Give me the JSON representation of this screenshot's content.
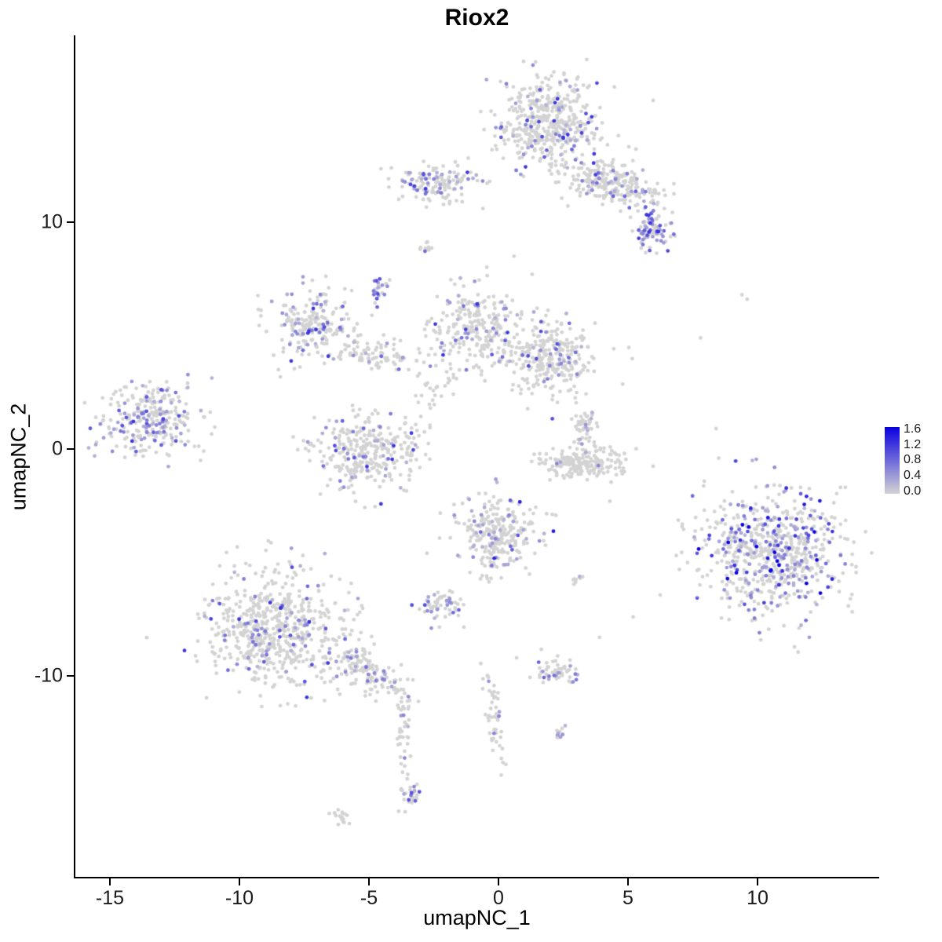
{
  "chart_data": {
    "type": "scatter",
    "title": "Riox2",
    "xlabel": "umapNC_1",
    "ylabel": "umapNC_2",
    "x_ticks": [
      -15,
      -10,
      -5,
      0,
      5,
      10
    ],
    "y_ticks": [
      -10,
      0,
      10
    ],
    "xlim": [
      -16.4,
      14.7
    ],
    "ylim": [
      -18.9,
      18.2
    ],
    "grid": false,
    "seed": 42,
    "colors": {
      "background": "#FFFFFF",
      "axis": "#000000",
      "base_point": "#D3D3D3",
      "high_point": "#0A00E0"
    },
    "point_style": {
      "radius": 2.4
    },
    "legend": {
      "position": "right",
      "labels": [
        "1.6",
        "1.2",
        "0.8",
        "0.4",
        "0.0"
      ],
      "min_value": 0.0,
      "max_value": 1.6,
      "low_color": "#D3D3D3",
      "high_color": "#0A00E0"
    },
    "clusters": [
      {
        "name": "top-main",
        "cx": 1.9,
        "cy": 14.3,
        "sx": 0.95,
        "sy": 1.0,
        "rot": 0,
        "n": 470,
        "frac": 0.14,
        "vmax": 1.2
      },
      {
        "name": "top-band",
        "cx": 4.4,
        "cy": 11.7,
        "sx": 1.05,
        "sy": 0.5,
        "rot": -14,
        "n": 260,
        "frac": 0.16,
        "vmax": 1.2
      },
      {
        "name": "top-right-knob",
        "cx": 5.9,
        "cy": 9.7,
        "sx": 0.4,
        "sy": 0.5,
        "rot": 0,
        "n": 85,
        "frac": 0.45,
        "vmax": 1.2
      },
      {
        "name": "top-left",
        "cx": -2.5,
        "cy": 11.7,
        "sx": 0.78,
        "sy": 0.45,
        "rot": 0,
        "n": 140,
        "frac": 0.22,
        "vmax": 1.2
      },
      {
        "name": "dot-upper-mid",
        "cx": -2.8,
        "cy": 8.9,
        "sx": 0.12,
        "sy": 0.12,
        "rot": 0,
        "n": 10,
        "frac": 0.3,
        "vmax": 0.8
      },
      {
        "name": "small-upper-left",
        "cx": -4.6,
        "cy": 7.0,
        "sx": 0.22,
        "sy": 0.3,
        "rot": 0,
        "n": 22,
        "frac": 0.35,
        "vmax": 1.0
      },
      {
        "name": "left-mid",
        "cx": -7.1,
        "cy": 5.5,
        "sx": 0.78,
        "sy": 0.72,
        "rot": 20,
        "n": 210,
        "frac": 0.2,
        "vmax": 1.2
      },
      {
        "name": "chain-left-center",
        "cx": -4.7,
        "cy": 4.2,
        "sx": 0.85,
        "sy": 0.38,
        "rot": -12,
        "n": 90,
        "frac": 0.1,
        "vmax": 0.8
      },
      {
        "name": "center",
        "cx": -0.9,
        "cy": 5.4,
        "sx": 0.85,
        "sy": 0.92,
        "rot": 0,
        "n": 250,
        "frac": 0.13,
        "vmax": 1.2
      },
      {
        "name": "center-right",
        "cx": 1.9,
        "cy": 4.0,
        "sx": 0.92,
        "sy": 0.82,
        "rot": 0,
        "n": 300,
        "frac": 0.1,
        "vmax": 1.0
      },
      {
        "name": "bridge-below-center",
        "cx": -2.4,
        "cy": 2.6,
        "sx": 0.3,
        "sy": 0.65,
        "rot": -30,
        "n": 28,
        "frac": 0.12,
        "vmax": 0.6
      },
      {
        "name": "mid-low",
        "cx": -5.0,
        "cy": -0.1,
        "sx": 1.05,
        "sy": 0.78,
        "rot": 10,
        "n": 330,
        "frac": 0.13,
        "vmax": 1.2
      },
      {
        "name": "far-left",
        "cx": -13.4,
        "cy": 1.2,
        "sx": 0.88,
        "sy": 0.78,
        "rot": 0,
        "n": 280,
        "frac": 0.38,
        "vmax": 1.2,
        "vscale": 0.35
      },
      {
        "name": "small-right-of-center",
        "cx": 3.3,
        "cy": 1.1,
        "sx": 0.28,
        "sy": 0.45,
        "rot": 0,
        "n": 50,
        "frac": 0.2,
        "vmax": 1.0
      },
      {
        "name": "crescent",
        "cx": 3.3,
        "cy": -0.6,
        "sx": 0.8,
        "sy": 0.33,
        "rot": 0,
        "n": 200,
        "frac": 0.03,
        "vmax": 0.6
      },
      {
        "name": "center-low",
        "cx": 0.0,
        "cy": -3.8,
        "sx": 0.78,
        "sy": 0.85,
        "rot": 0,
        "n": 270,
        "frac": 0.18,
        "vmax": 1.4
      },
      {
        "name": "small-below-center",
        "cx": -2.2,
        "cy": -6.9,
        "sx": 0.45,
        "sy": 0.32,
        "rot": 0,
        "n": 60,
        "frac": 0.25,
        "vmax": 1.0
      },
      {
        "name": "bottom-left",
        "cx": -8.6,
        "cy": -7.9,
        "sx": 1.35,
        "sy": 1.35,
        "rot": 0,
        "n": 640,
        "frac": 0.13,
        "vmax": 1.2
      },
      {
        "name": "bottom-left-tail",
        "cx": -4.9,
        "cy": -9.8,
        "sx": 0.9,
        "sy": 0.42,
        "rot": -38,
        "n": 150,
        "frac": 0.18,
        "vmax": 1.2
      },
      {
        "name": "tail-chain",
        "cx": -3.65,
        "cy": -12.7,
        "sx": 0.13,
        "sy": 1.15,
        "rot": 0,
        "n": 40,
        "frac": 0.05,
        "vmax": 0.6
      },
      {
        "name": "tail-end",
        "cx": -3.45,
        "cy": -15.2,
        "sx": 0.16,
        "sy": 0.42,
        "rot": 0,
        "n": 26,
        "frac": 0.3,
        "vmax": 1.0
      },
      {
        "name": "small-bottom-left-blob",
        "cx": -6.1,
        "cy": -16.2,
        "sx": 0.22,
        "sy": 0.16,
        "rot": 0,
        "n": 18,
        "frac": 0.1,
        "vmax": 0.6
      },
      {
        "name": "small-bottom-mid",
        "cx": 2.4,
        "cy": -9.8,
        "sx": 0.5,
        "sy": 0.3,
        "rot": 0,
        "n": 55,
        "frac": 0.3,
        "vmax": 1.2
      },
      {
        "name": "center-bottom-chain",
        "cx": -0.2,
        "cy": -11.9,
        "sx": 0.15,
        "sy": 1.05,
        "rot": 8,
        "n": 50,
        "frac": 0.05,
        "vmax": 0.6
      },
      {
        "name": "dot-bottom-mid",
        "cx": 2.35,
        "cy": -12.5,
        "sx": 0.15,
        "sy": 0.13,
        "rot": 0,
        "n": 12,
        "frac": 0.35,
        "vmax": 1.0
      },
      {
        "name": "right-big",
        "cx": 10.5,
        "cy": -4.6,
        "sx": 1.42,
        "sy": 1.3,
        "rot": 0,
        "n": 690,
        "frac": 0.3,
        "vmax": 1.6,
        "vscale": 0.55
      },
      {
        "name": "pair-mid-right",
        "cx": 3.1,
        "cy": -5.8,
        "sx": 0.15,
        "sy": 0.2,
        "rot": 0,
        "n": 8,
        "frac": 0.1,
        "vmax": 0.6
      }
    ],
    "singles": [
      [
        9.4,
        6.8
      ],
      [
        9.6,
        6.6
      ],
      [
        7.8,
        4.9
      ],
      [
        8.4,
        0.9
      ],
      [
        8.5,
        -0.4
      ],
      [
        5.2,
        -7.4
      ],
      [
        4.3,
        -2.3
      ],
      [
        1.3,
        7.7
      ],
      [
        0.6,
        8.5
      ],
      [
        -0.6,
        10.6
      ],
      [
        -1.4,
        10.9
      ],
      [
        -12.0,
        2.9
      ],
      [
        -11.5,
        -0.5
      ],
      [
        0.7,
        -9.2
      ],
      [
        3.9,
        -8.3
      ]
    ]
  }
}
